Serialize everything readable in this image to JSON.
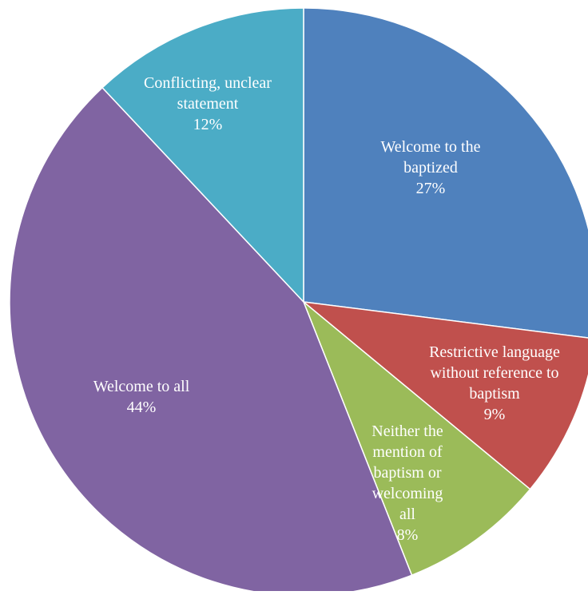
{
  "chart_data": {
    "type": "pie",
    "title": "",
    "start_angle_deg": 0,
    "direction": "clockwise",
    "slice_border_color": "#ffffff",
    "label_color": "#ffffff",
    "slices": [
      {
        "name": "Welcome to the baptized",
        "value": 27,
        "label_lines": [
          "Welcome to the",
          "baptized"
        ],
        "percent_label": "27%",
        "color": "#4F81BD"
      },
      {
        "name": "Restrictive language without reference to baptism",
        "value": 9,
        "label_lines": [
          "Restrictive language",
          "without reference to",
          "baptism"
        ],
        "percent_label": "9%",
        "color": "#C0504D"
      },
      {
        "name": "Neither the mention of baptism or welcoming all",
        "value": 8,
        "label_lines": [
          "Neither the",
          "mention of",
          "baptism or",
          "welcoming",
          "all"
        ],
        "percent_label": "8%",
        "color": "#9BBB59"
      },
      {
        "name": "Welcome to all",
        "value": 44,
        "label_lines": [
          "Welcome to all"
        ],
        "percent_label": "44%",
        "color": "#8064A2"
      },
      {
        "name": "Conflicting, unclear statement",
        "value": 12,
        "label_lines": [
          "Conflicting, unclear",
          "statement"
        ],
        "percent_label": "12%",
        "color": "#4BACC6"
      }
    ]
  }
}
